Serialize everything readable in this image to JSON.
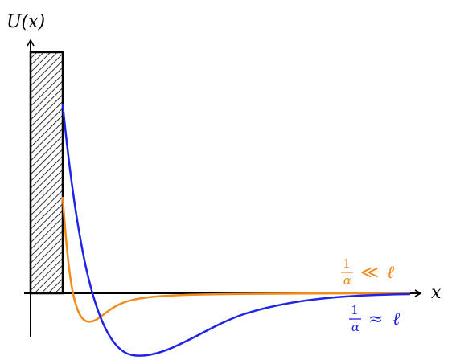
{
  "axes": {
    "y_label": "U(x)",
    "x_label": "x"
  },
  "curves": [
    {
      "id": "orange",
      "color": "#f28a1c",
      "label_frac_num": "1",
      "label_frac_den": "α",
      "label_relation": "≪",
      "label_rhs": "ℓ"
    },
    {
      "id": "blue",
      "color": "#1f24e6",
      "label_frac_num": "1",
      "label_frac_den": "α",
      "label_relation": "≈",
      "label_rhs": "ℓ"
    }
  ],
  "wall": {
    "style": "hatched"
  }
}
